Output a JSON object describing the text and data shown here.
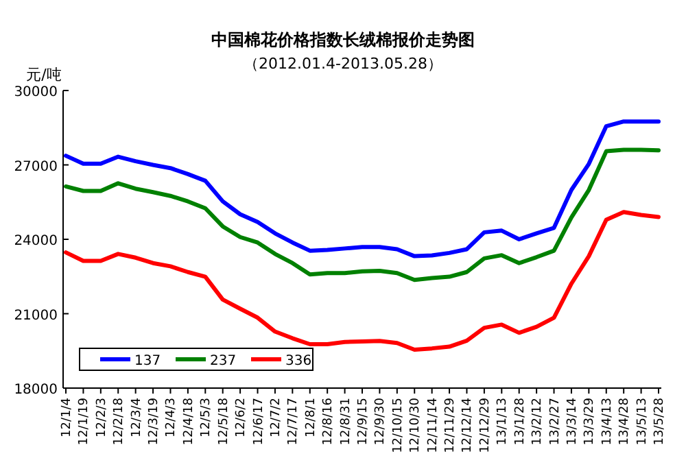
{
  "chart_data": {
    "type": "line",
    "title": "中国棉花价格指数长绒棉报价走势图",
    "subtitle": "（2012.01.4-2013.05.28）",
    "ylabel": "元/吨",
    "categories": [
      "12/1/4",
      "12/1/19",
      "12/2/3",
      "12/2/18",
      "12/3/4",
      "12/3/19",
      "12/4/3",
      "12/4/18",
      "12/5/3",
      "12/5/18",
      "12/6/2",
      "12/6/17",
      "12/7/2",
      "12/7/17",
      "12/8/1",
      "12/8/16",
      "12/8/31",
      "12/9/15",
      "12/9/30",
      "12/10/15",
      "12/10/30",
      "12/11/14",
      "12/11/29",
      "12/12/14",
      "12/12/29",
      "13/1/13",
      "13/1/28",
      "13/2/12",
      "13/2/27",
      "13/3/14",
      "13/3/29",
      "13/4/13",
      "13/4/28",
      "13/5/13",
      "13/5/28"
    ],
    "series": [
      {
        "name": "137",
        "color": "#0000ff",
        "values": [
          27370,
          27050,
          27050,
          27330,
          27150,
          27000,
          26870,
          26630,
          26360,
          25530,
          25010,
          24700,
          24240,
          23870,
          23540,
          23570,
          23630,
          23690,
          23690,
          23600,
          23320,
          23350,
          23450,
          23600,
          24280,
          24350,
          24000,
          24240,
          24460,
          25990,
          27040,
          28560,
          28750,
          28750,
          28750
        ]
      },
      {
        "name": "237",
        "color": "#008000",
        "values": [
          26130,
          25950,
          25950,
          26260,
          26040,
          25900,
          25750,
          25530,
          25250,
          24520,
          24090,
          23870,
          23410,
          23040,
          22580,
          22640,
          22640,
          22710,
          22730,
          22640,
          22360,
          22440,
          22490,
          22680,
          23230,
          23360,
          23040,
          23280,
          23540,
          24880,
          25990,
          27550,
          27610,
          27610,
          27590
        ]
      },
      {
        "name": "336",
        "color": "#ff0000",
        "values": [
          23470,
          23130,
          23130,
          23410,
          23260,
          23040,
          22910,
          22680,
          22490,
          21570,
          21200,
          20840,
          20280,
          20010,
          19770,
          19770,
          19860,
          19880,
          19900,
          19820,
          19550,
          19600,
          19670,
          19910,
          20430,
          20560,
          20230,
          20470,
          20840,
          22210,
          23320,
          24790,
          25100,
          24980,
          24900
        ]
      }
    ],
    "ylim": [
      18000,
      30000
    ],
    "yticks": [
      18000,
      21000,
      24000,
      27000,
      30000
    ],
    "grid": false,
    "legend": "bottom left",
    "marker": "none",
    "line_style": "solid"
  }
}
